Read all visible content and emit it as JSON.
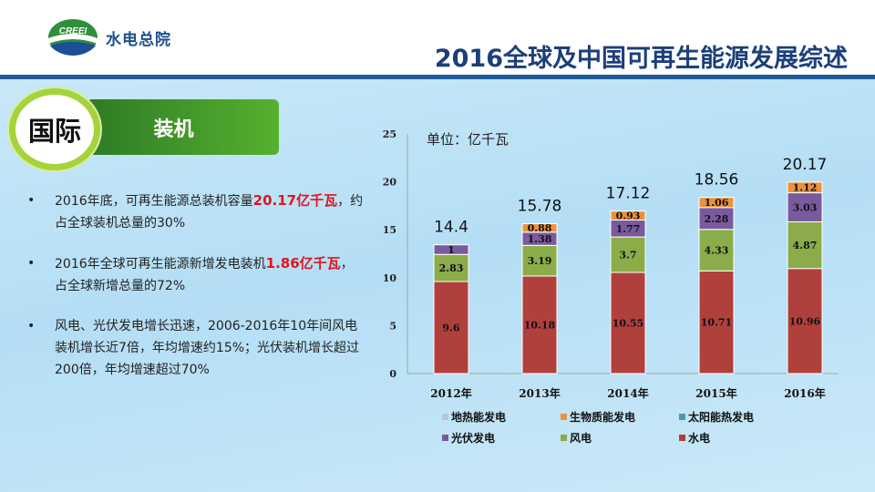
{
  "header": {
    "logo_text": "CREEI",
    "org_name": "水电总院",
    "title": "2016全球及中国可再生能源发展综述"
  },
  "section": {
    "badge": "国际",
    "topic": "装机"
  },
  "bullets": [
    [
      {
        "t": "2016年底，可再生能源总装机容量"
      },
      {
        "t": "20.17亿千瓦",
        "red": true
      },
      {
        "t": "，约占全球装机总量的30%"
      }
    ],
    [
      {
        "t": "2016年全球可再生能源新增发电装机"
      },
      {
        "t": "1.86亿千瓦",
        "red": true
      },
      {
        "t": "，占全球新增总量的72%"
      }
    ],
    [
      {
        "t": "风电、光伏发电增长迅速，2006-2016年10年间风电装机增长近7倍，年均增速约15%；光伏装机增长超过200倍，年均增速超过70%"
      }
    ]
  ],
  "chart_data": {
    "type": "bar",
    "stacked": true,
    "unit_label": "单位：亿千瓦",
    "categories": [
      "2012年",
      "2013年",
      "2014年",
      "2015年",
      "2016年"
    ],
    "ylim": [
      0,
      25
    ],
    "yticks": [
      0,
      5,
      10,
      15,
      20,
      25
    ],
    "totals": [
      "14.4",
      "15.78",
      "17.12",
      "18.56",
      "20.17"
    ],
    "series": [
      {
        "name": "水电",
        "color": "#b0403c",
        "values": [
          9.6,
          10.18,
          10.55,
          10.71,
          10.96
        ],
        "labels": [
          "9.6",
          "10.18",
          "10.55",
          "10.71",
          "10.96"
        ]
      },
      {
        "name": "风电",
        "color": "#8aac4a",
        "values": [
          2.83,
          3.19,
          3.7,
          4.33,
          4.87
        ],
        "labels": [
          "2.83",
          "3.19",
          "3.7",
          "4.33",
          "4.87"
        ]
      },
      {
        "name": "光伏发电",
        "color": "#7a5a9e",
        "values": [
          1,
          1.38,
          1.77,
          2.28,
          3.03
        ],
        "labels": [
          "1",
          "1.38",
          "1.77",
          "2.28",
          "3.03"
        ]
      },
      {
        "name": "生物质能发电",
        "color": "#ed913a",
        "values": [
          0,
          0.88,
          0.93,
          1.06,
          1.12
        ],
        "labels": [
          "",
          "0.88",
          "0.93",
          "1.06",
          "1.12"
        ]
      },
      {
        "name": "太阳能热发电",
        "color": "#4a9aad",
        "values": [
          0,
          0,
          0,
          0,
          0
        ]
      },
      {
        "name": "地热能发电",
        "color": "#b8c8dc",
        "values": [
          0,
          0,
          0,
          0,
          0
        ]
      }
    ],
    "legend": [
      "地热能发电",
      "生物质能发电",
      "太阳能热发电",
      "光伏发电",
      "风电",
      "水电"
    ],
    "legend_colors": [
      "#b8c8dc",
      "#ed913a",
      "#4a9aad",
      "#7a5a9e",
      "#8aac4a",
      "#b0403c"
    ],
    "legend_position": "bottom"
  }
}
